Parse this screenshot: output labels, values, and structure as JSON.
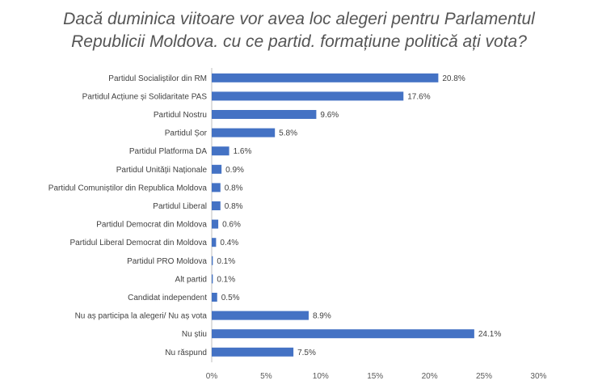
{
  "title": {
    "line1": "Dacă duminica viitoare vor avea loc alegeri pentru Parlamentul",
    "line2": "Republicii Moldova. cu ce partid. formațiune politică ați vota?"
  },
  "chart_data": {
    "type": "bar",
    "orientation": "horizontal",
    "categories": [
      "Partidul Socialiștilor din RM",
      "Partidul Acțiune și Solidaritate PAS",
      "Partidul Nostru",
      "Partidul Șor",
      "Partidul Platforma DA",
      "Partidul Unității Naționale",
      "Partidul Comuniștilor din Republica Moldova",
      "Partidul Liberal",
      "Partidul Democrat din Moldova",
      "Partidul Liberal Democrat din Moldova",
      "Partidul PRO Moldova",
      "Alt partid",
      "Candidat independent",
      "Nu aș participa la alegeri/ Nu aș vota",
      "Nu știu",
      "Nu răspund"
    ],
    "values": [
      20.8,
      17.6,
      9.6,
      5.8,
      1.6,
      0.9,
      0.8,
      0.8,
      0.6,
      0.4,
      0.1,
      0.1,
      0.5,
      8.9,
      24.1,
      7.5
    ],
    "labels": [
      "20.8%",
      "17.6%",
      "9.6%",
      "5.8%",
      "1.6%",
      "0.9%",
      "0.8%",
      "0.8%",
      "0.6%",
      "0.4%",
      "0.1%",
      "0.1%",
      "0.5%",
      "8.9%",
      "24.1%",
      "7.5%"
    ],
    "xticks": [
      "0%",
      "5%",
      "10%",
      "15%",
      "20%",
      "25%",
      "30%"
    ],
    "xlim": [
      0,
      30
    ],
    "grid": false,
    "bar_color": "#4472C4"
  }
}
